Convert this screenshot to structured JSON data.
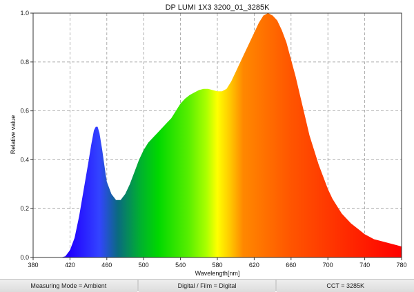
{
  "chart_data": {
    "type": "area",
    "title": "DP LUMI 1X3 3200_01_3285K",
    "xlabel": "Wavelength[nm]",
    "ylabel": "Relative value",
    "xlim": [
      380,
      780
    ],
    "ylim": [
      0,
      1.0
    ],
    "xticks": [
      "380",
      "420",
      "460",
      "500",
      "540",
      "580",
      "620",
      "660",
      "700",
      "740",
      "780"
    ],
    "yticks": [
      "0.0",
      "0.2",
      "0.4",
      "0.6",
      "0.8",
      "1.0"
    ],
    "grid": true,
    "fill": "visible-spectrum-gradient",
    "series": [
      {
        "x": [
          380,
          400,
          410,
          415,
          420,
          425,
          430,
          435,
          440,
          443,
          446,
          448,
          450,
          452,
          455,
          458,
          460,
          465,
          470,
          475,
          480,
          485,
          490,
          495,
          500,
          505,
          510,
          515,
          520,
          525,
          530,
          535,
          540,
          545,
          550,
          555,
          560,
          565,
          570,
          575,
          580,
          585,
          590,
          595,
          600,
          605,
          610,
          615,
          620,
          625,
          630,
          635,
          640,
          645,
          650,
          655,
          660,
          665,
          670,
          675,
          680,
          685,
          690,
          695,
          700,
          705,
          710,
          715,
          720,
          725,
          730,
          735,
          740,
          745,
          750,
          755,
          760,
          765,
          770,
          775,
          780
        ],
        "y": [
          0,
          0,
          0,
          0.005,
          0.03,
          0.08,
          0.17,
          0.28,
          0.39,
          0.46,
          0.52,
          0.535,
          0.535,
          0.51,
          0.44,
          0.36,
          0.31,
          0.26,
          0.235,
          0.235,
          0.26,
          0.3,
          0.35,
          0.4,
          0.44,
          0.47,
          0.49,
          0.51,
          0.53,
          0.55,
          0.57,
          0.6,
          0.63,
          0.65,
          0.665,
          0.675,
          0.685,
          0.69,
          0.69,
          0.685,
          0.68,
          0.68,
          0.69,
          0.72,
          0.76,
          0.8,
          0.84,
          0.88,
          0.92,
          0.96,
          0.99,
          1.0,
          0.99,
          0.97,
          0.93,
          0.88,
          0.81,
          0.74,
          0.66,
          0.58,
          0.5,
          0.44,
          0.38,
          0.33,
          0.28,
          0.24,
          0.21,
          0.18,
          0.16,
          0.14,
          0.125,
          0.11,
          0.095,
          0.085,
          0.075,
          0.07,
          0.065,
          0.06,
          0.055,
          0.05,
          0.045
        ]
      }
    ]
  },
  "status_bar": {
    "measuring_mode": "Measuring Mode = Ambient",
    "digital_film": "Digital / Film = Digital",
    "cct": "CCT = 3285K"
  }
}
